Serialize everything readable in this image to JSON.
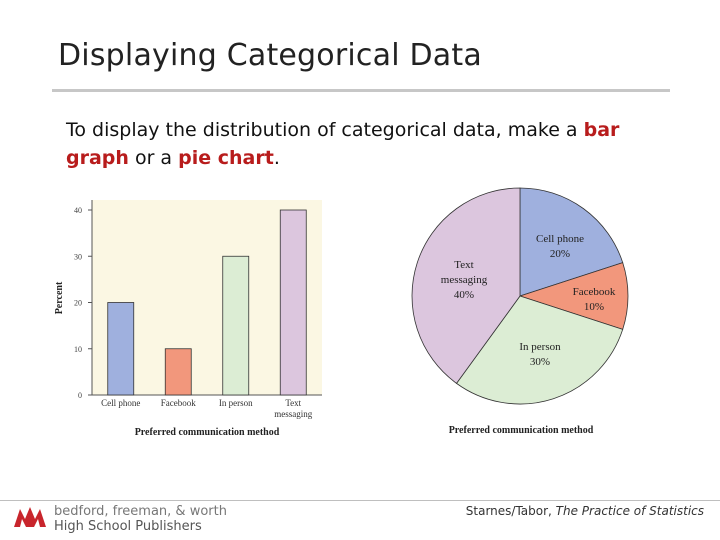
{
  "slide": {
    "title": "Displaying Categorical Data",
    "body_before": "To display the distribution of categorical data, make a ",
    "body_hl1": "bar graph",
    "body_mid": " or a ",
    "body_hl2": "pie chart",
    "body_after": "."
  },
  "footer": {
    "logo_line1": "bedford, freeman, & worth",
    "logo_line2": "High School Publishers",
    "citation_authors": "Starnes/Tabor, ",
    "citation_title": "The Practice of Statistics"
  },
  "colors": {
    "accent_red": "#b81c1c",
    "cell_phone": "#9fb0de",
    "facebook": "#f2977c",
    "in_person": "#dcedd4",
    "text_messaging": "#dcc6de",
    "bar_plot_bg": "#fbf7e3",
    "logo_red": "#c8252c"
  },
  "chart_data": [
    {
      "type": "bar",
      "categories": [
        "Cell phone",
        "Facebook",
        "In person",
        "Text messaging"
      ],
      "category_label_lines": [
        [
          "Cell phone"
        ],
        [
          "Facebook"
        ],
        [
          "In person"
        ],
        [
          "Text",
          "messaging"
        ]
      ],
      "values": [
        20,
        10,
        30,
        40
      ],
      "xlabel": "Preferred communication method",
      "ylabel": "Percent",
      "ylim": [
        0,
        40
      ],
      "yticks": [
        0,
        10,
        20,
        30,
        40
      ],
      "grid": false
    },
    {
      "type": "pie",
      "slices": [
        {
          "label": "Cell phone",
          "pct_label": "20%",
          "value": 20
        },
        {
          "label": "Facebook",
          "pct_label": "10%",
          "value": 10
        },
        {
          "label": "In person",
          "pct_label": "30%",
          "value": 30
        },
        {
          "label": "Text messaging",
          "label_lines": [
            "Text",
            "messaging"
          ],
          "pct_label": "40%",
          "value": 40
        }
      ],
      "xlabel": "Preferred communication method"
    }
  ]
}
